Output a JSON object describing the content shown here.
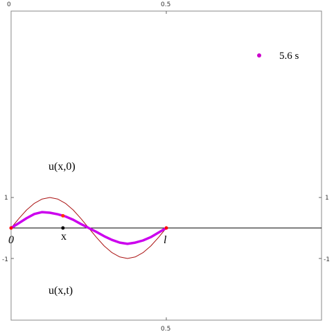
{
  "chart_data": {
    "type": "line",
    "title": "",
    "xlim": [
      0,
      1
    ],
    "ylim": [
      -1.5,
      3.5
    ],
    "x_tick_labels": {
      "top_0": "0",
      "top_half": "0.5",
      "bottom_half": "0.5"
    },
    "y_tick_labels": {
      "left_pos": "1",
      "left_neg": "-1",
      "right_pos": "1",
      "right_neg": "-1"
    },
    "axis_point_labels": {
      "origin": "0",
      "x_marker": "x",
      "end": "l"
    },
    "annotations": {
      "initial": "u(x,0)",
      "current": "u(x,t)"
    },
    "legend": {
      "label": "5.6 s",
      "marker_color": "#cc00cc"
    },
    "marker_x": 0.167,
    "series": [
      {
        "key": "initial",
        "color": "#aa1111",
        "x": [
          0,
          0.025,
          0.05,
          0.075,
          0.1,
          0.125,
          0.15,
          0.175,
          0.2,
          0.225,
          0.25,
          0.275,
          0.3,
          0.325,
          0.35,
          0.375,
          0.4,
          0.425,
          0.45,
          0.475,
          0.5
        ],
        "y": [
          0,
          0.31,
          0.59,
          0.81,
          0.95,
          1.0,
          0.95,
          0.81,
          0.59,
          0.31,
          0,
          -0.31,
          -0.59,
          -0.81,
          -0.95,
          -1.0,
          -0.95,
          -0.81,
          -0.59,
          -0.31,
          0
        ]
      },
      {
        "key": "current",
        "color": "#cc00ee",
        "x": [
          0,
          0.025,
          0.05,
          0.075,
          0.1,
          0.125,
          0.15,
          0.175,
          0.2,
          0.225,
          0.25,
          0.275,
          0.3,
          0.325,
          0.35,
          0.375,
          0.4,
          0.425,
          0.45,
          0.475,
          0.5
        ],
        "y": [
          0,
          0.16,
          0.32,
          0.46,
          0.52,
          0.5,
          0.45,
          0.38,
          0.27,
          0.13,
          0,
          -0.13,
          -0.27,
          -0.39,
          -0.48,
          -0.52,
          -0.48,
          -0.41,
          -0.3,
          -0.15,
          0
        ]
      }
    ],
    "endpoints": {
      "color": "#ff0000",
      "x": [
        0,
        0.5
      ],
      "y": [
        0,
        0
      ]
    },
    "tracker": {
      "color": "#ff3300",
      "x": 0.167,
      "y": 0.4
    }
  }
}
